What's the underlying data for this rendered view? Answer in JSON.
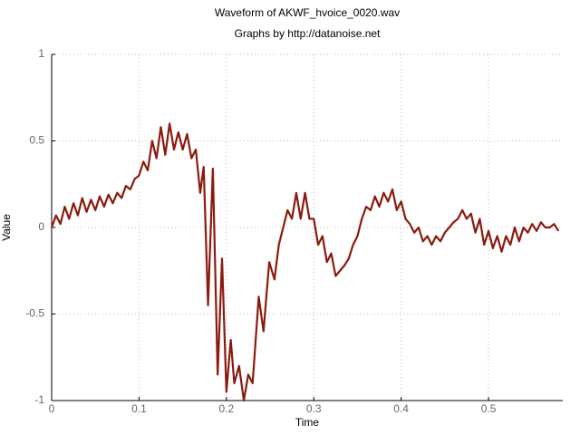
{
  "chart_data": {
    "type": "line",
    "title": "Waveform of AKWF_hvoice_0020.wav",
    "subtitle": "Graphs by http://datanoise.net",
    "x_label": "Time",
    "y_label": "Value",
    "xlim": [
      0,
      0.585
    ],
    "ylim": [
      -1,
      1
    ],
    "xticks": [
      0,
      0.1,
      0.2,
      0.3,
      0.4,
      0.5
    ],
    "yticks": [
      -1,
      -0.5,
      0,
      0.5,
      1
    ],
    "grid": true,
    "series": [
      {
        "color": "#8b1a0e",
        "x": [
          0,
          0.005,
          0.01,
          0.015,
          0.02,
          0.025,
          0.03,
          0.035,
          0.04,
          0.045,
          0.05,
          0.055,
          0.06,
          0.065,
          0.07,
          0.075,
          0.08,
          0.085,
          0.09,
          0.095,
          0.1,
          0.105,
          0.11,
          0.115,
          0.12,
          0.125,
          0.13,
          0.135,
          0.14,
          0.145,
          0.15,
          0.155,
          0.16,
          0.165,
          0.17,
          0.174,
          0.179,
          0.1845,
          0.19,
          0.195,
          0.2,
          0.205,
          0.209,
          0.2145,
          0.22,
          0.225,
          0.23,
          0.237,
          0.2425,
          0.249,
          0.255,
          0.26,
          0.265,
          0.27,
          0.275,
          0.28,
          0.285,
          0.29,
          0.295,
          0.3,
          0.305,
          0.31,
          0.315,
          0.32,
          0.325,
          0.33,
          0.335,
          0.34,
          0.345,
          0.35,
          0.355,
          0.36,
          0.365,
          0.37,
          0.375,
          0.38,
          0.385,
          0.39,
          0.395,
          0.4,
          0.405,
          0.41,
          0.415,
          0.42,
          0.425,
          0.43,
          0.435,
          0.44,
          0.445,
          0.45,
          0.455,
          0.46,
          0.465,
          0.47,
          0.475,
          0.48,
          0.485,
          0.49,
          0.495,
          0.5,
          0.505,
          0.51,
          0.515,
          0.52,
          0.525,
          0.53,
          0.535,
          0.54,
          0.545,
          0.55,
          0.555,
          0.56,
          0.565,
          0.57,
          0.575,
          0.58
        ],
        "values": [
          0,
          0.07,
          0.02,
          0.12,
          0.05,
          0.14,
          0.07,
          0.17,
          0.09,
          0.16,
          0.1,
          0.18,
          0.12,
          0.19,
          0.14,
          0.2,
          0.17,
          0.24,
          0.22,
          0.28,
          0.3,
          0.38,
          0.33,
          0.5,
          0.4,
          0.58,
          0.42,
          0.6,
          0.45,
          0.55,
          0.45,
          0.54,
          0.4,
          0.45,
          0.2,
          0.35,
          -0.45,
          0.34,
          -0.85,
          -0.18,
          -0.95,
          -0.65,
          -0.9,
          -0.8,
          -1.0,
          -0.85,
          -0.9,
          -0.4,
          -0.6,
          -0.2,
          -0.3,
          -0.1,
          0.0,
          0.1,
          0.05,
          0.2,
          0.05,
          0.2,
          0.05,
          0.05,
          -0.1,
          -0.05,
          -0.2,
          -0.15,
          -0.28,
          -0.25,
          -0.22,
          -0.18,
          -0.1,
          -0.05,
          0.05,
          0.12,
          0.1,
          0.18,
          0.12,
          0.2,
          0.15,
          0.22,
          0.1,
          0.15,
          0.05,
          0.02,
          -0.03,
          0.0,
          -0.08,
          -0.05,
          -0.1,
          -0.05,
          -0.08,
          -0.03,
          0.0,
          0.03,
          0.05,
          0.1,
          0.05,
          0.08,
          -0.03,
          0.05,
          -0.1,
          -0.02,
          -0.12,
          -0.05,
          -0.14,
          -0.05,
          -0.1,
          0.0,
          -0.08,
          0.0,
          -0.03,
          0.02,
          -0.02,
          0.03,
          0.0,
          0.0,
          0.02,
          -0.02
        ]
      }
    ]
  }
}
